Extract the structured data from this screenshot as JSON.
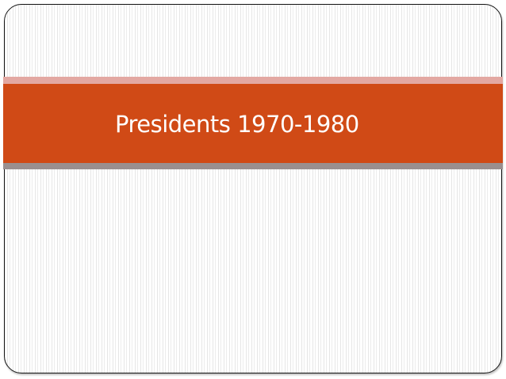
{
  "slide": {
    "title": "Presidents 1970-1980",
    "colors": {
      "band": "#d04a16",
      "band_top_stripe": "#e3a8a2",
      "band_bottom_stripe": "#9a8f8f",
      "title_text": "#ffffff",
      "frame_border": "#111111"
    }
  }
}
